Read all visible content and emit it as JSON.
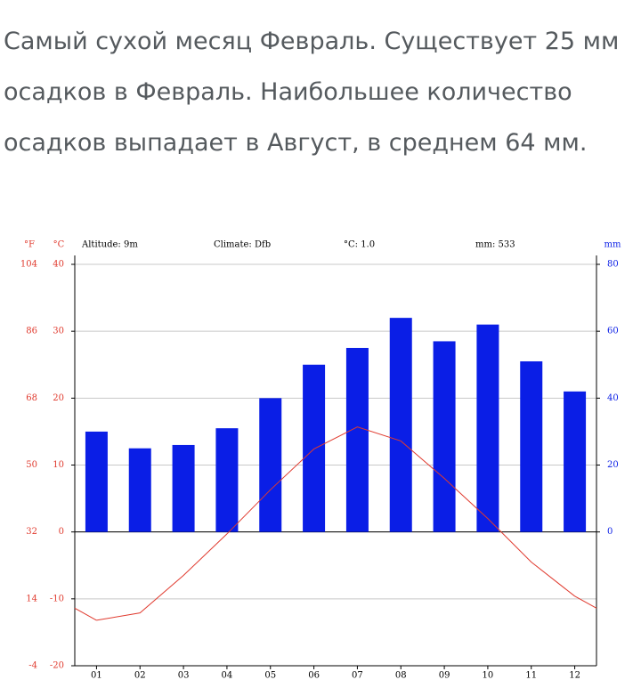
{
  "text": "Самый сухой месяц Февраль. Существует 25 мм осадков в Февраль. Наибольшее количество осадков выпадает в Август, в среднем 64 мм.",
  "chart_data": {
    "type": "climate",
    "altitude": "Altitude: 9m",
    "climate": "Climate: Dfb",
    "mean_temp": "°C: 1.0",
    "total_precip": "mm: 533",
    "y_label": "°C",
    "y2_label": "mm",
    "y3_label": "°F",
    "categories": [
      "01",
      "02",
      "03",
      "04",
      "05",
      "06",
      "07",
      "08",
      "09",
      "10",
      "11",
      "12"
    ],
    "series": [
      {
        "type": "bar",
        "axis": "y2",
        "color": "#0a1ee6",
        "values": [
          30,
          25,
          26,
          31,
          40,
          50,
          55,
          64,
          57,
          62,
          51,
          42
        ]
      },
      {
        "type": "line",
        "color": "#e03a2e",
        "values": [
          -13.2,
          -12.1,
          -6.5,
          -0.3,
          6.3,
          12.4,
          15.7,
          13.6,
          8.0,
          2.0,
          -4.5,
          -9.6
        ]
      }
    ],
    "ylim": [
      -20,
      40
    ],
    "yticks": [
      -20,
      -10,
      0,
      10,
      20,
      30,
      40
    ],
    "y2lim": [
      -40,
      80
    ],
    "y2ticks": [
      0,
      20,
      40,
      60,
      80
    ],
    "y3lim": [
      -4,
      104
    ],
    "y3ticks": [
      -4,
      14,
      32,
      50,
      68,
      86,
      104
    ],
    "grid": true
  }
}
